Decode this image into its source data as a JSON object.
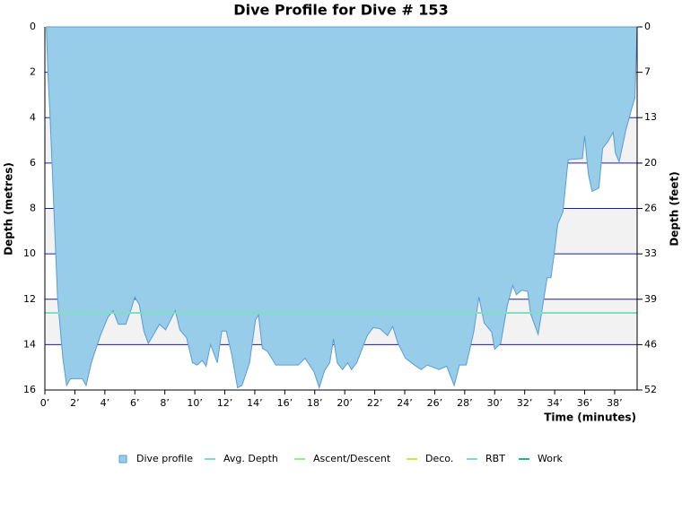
{
  "chart_data": {
    "type": "area",
    "title": "Dive Profile for Dive # 153",
    "x_label": "Time (minutes)",
    "y_label": "Depth (metres)",
    "y2_label": "Depth (feet)",
    "xlim": [
      0,
      39.5
    ],
    "ylim": [
      0,
      16
    ],
    "y2lim": [
      0,
      52.49
    ],
    "y_inverted": true,
    "grid": true,
    "xticks": [
      {
        "value": 0,
        "label": "0’"
      },
      {
        "value": 2,
        "label": "2’"
      },
      {
        "value": 4,
        "label": "4’"
      },
      {
        "value": 6,
        "label": "6’"
      },
      {
        "value": 8,
        "label": "8’"
      },
      {
        "value": 10,
        "label": "10’"
      },
      {
        "value": 12,
        "label": "12’"
      },
      {
        "value": 14,
        "label": "14’"
      },
      {
        "value": 16,
        "label": "16’"
      },
      {
        "value": 18,
        "label": "18’"
      },
      {
        "value": 20,
        "label": "20’"
      },
      {
        "value": 22,
        "label": "22’"
      },
      {
        "value": 24,
        "label": "24’"
      },
      {
        "value": 26,
        "label": "26’"
      },
      {
        "value": 28,
        "label": "28’"
      },
      {
        "value": 30,
        "label": "30’"
      },
      {
        "value": 32,
        "label": "32’"
      },
      {
        "value": 34,
        "label": "34’"
      },
      {
        "value": 36,
        "label": "36’"
      },
      {
        "value": 38,
        "label": "38’"
      }
    ],
    "yticks": [
      0,
      2,
      4,
      6,
      8,
      10,
      12,
      14,
      16
    ],
    "y2ticks": [
      0,
      {
        "value": 6.56,
        "label": "7"
      },
      {
        "value": 13.12,
        "label": "13"
      },
      {
        "value": 19.69,
        "label": "20"
      },
      {
        "value": 26.25,
        "label": "26"
      },
      {
        "value": 32.81,
        "label": "33"
      },
      {
        "value": 39.37,
        "label": "39"
      },
      {
        "value": 45.93,
        "label": "46"
      },
      {
        "value": 52.49,
        "label": "52"
      }
    ],
    "x": [
      0.1,
      0.2,
      0.35,
      0.6,
      0.85,
      1.2,
      1.45,
      1.7,
      2.5,
      2.75,
      3.1,
      3.7,
      4.2,
      4.55,
      4.9,
      5.4,
      5.75,
      6.0,
      6.3,
      6.6,
      6.9,
      7.65,
      8.05,
      8.7,
      9.0,
      9.45,
      9.85,
      10.15,
      10.5,
      10.75,
      11.05,
      11.5,
      11.8,
      12.1,
      12.45,
      12.85,
      13.15,
      13.65,
      14.05,
      14.25,
      14.5,
      14.85,
      15.4,
      16.9,
      17.35,
      17.95,
      18.3,
      18.65,
      19.0,
      19.25,
      19.5,
      19.85,
      20.2,
      20.45,
      20.8,
      21.5,
      21.9,
      22.35,
      22.85,
      23.2,
      23.55,
      24.05,
      24.65,
      25.1,
      25.5,
      26.3,
      26.8,
      27.3,
      27.65,
      28.1,
      28.6,
      28.95,
      29.3,
      29.8,
      30.0,
      30.4,
      30.85,
      31.2,
      31.45,
      31.8,
      32.2,
      32.4,
      32.9,
      33.5,
      33.75,
      33.95,
      34.2,
      34.55,
      34.9,
      35.85,
      36.0,
      36.25,
      36.5,
      36.95,
      37.2,
      37.55,
      37.9,
      38.05,
      38.3,
      38.75,
      39.2,
      39.35,
      39.5
    ],
    "series": [
      {
        "name": "Dive profile",
        "color": "#97cde9",
        "values": [
          0,
          2,
          4,
          8,
          12,
          14.6,
          15.8,
          15.5,
          15.5,
          15.8,
          14.8,
          13.6,
          12.8,
          12.5,
          13.1,
          13.1,
          12.45,
          11.9,
          12.25,
          13.4,
          13.95,
          13.1,
          13.35,
          12.5,
          13.35,
          13.7,
          14.8,
          14.9,
          14.7,
          14.95,
          14.0,
          14.8,
          13.4,
          13.4,
          14.4,
          15.9,
          15.8,
          14.8,
          12.9,
          12.7,
          14.15,
          14.3,
          14.9,
          14.9,
          14.6,
          15.2,
          15.9,
          15.15,
          14.8,
          13.75,
          14.8,
          15.1,
          14.8,
          15.1,
          14.8,
          13.6,
          13.25,
          13.3,
          13.6,
          13.2,
          13.95,
          14.6,
          14.9,
          15.1,
          14.9,
          15.1,
          14.95,
          15.8,
          14.9,
          14.9,
          13.45,
          11.9,
          13.05,
          13.45,
          14.2,
          13.95,
          12.25,
          11.4,
          11.8,
          11.6,
          11.65,
          12.65,
          13.55,
          11.05,
          11.05,
          10.1,
          8.7,
          8.15,
          5.85,
          5.8,
          4.8,
          6.5,
          7.25,
          7.1,
          5.35,
          5.05,
          4.65,
          5.55,
          5.95,
          4.55,
          3.45,
          3.15,
          0
        ]
      },
      {
        "name": "Avg. Depth",
        "color": "#7fe0c0",
        "value": 12.6
      },
      {
        "name": "Ascent/Descent",
        "color": "#90ee90"
      },
      {
        "name": "Deco.",
        "color": "#d4e157"
      },
      {
        "name": "RBT",
        "color": "#87cefa"
      },
      {
        "name": "Work",
        "color": "#20b28a"
      }
    ]
  }
}
